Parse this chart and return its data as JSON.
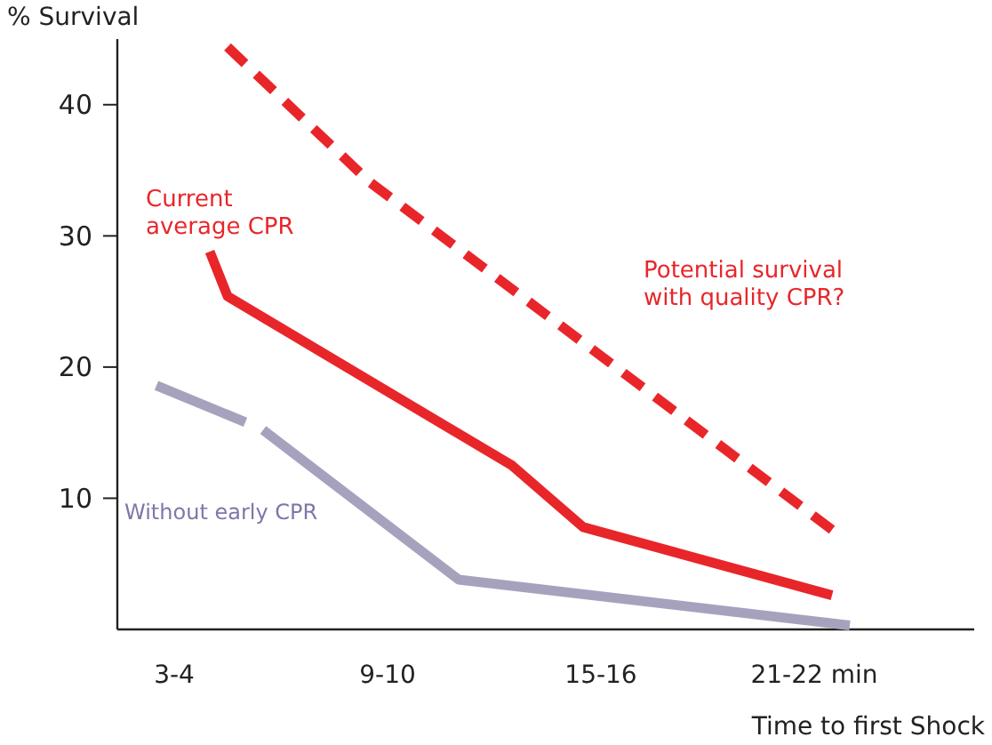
{
  "chart_data": {
    "type": "line",
    "xlabel": "Time to first Shock",
    "ylabel": "% Survival",
    "categories": [
      null,
      null,
      null,
      "3-4",
      null,
      null,
      null,
      null,
      null,
      null,
      null,
      null,
      null,
      null,
      null,
      "9-10",
      null,
      null,
      null,
      null,
      null,
      null,
      null,
      null,
      null,
      null,
      null,
      "15-16",
      null,
      null,
      null,
      null,
      null,
      null,
      null,
      null,
      null,
      null,
      null,
      "21-22 min",
      null,
      null,
      null,
      null,
      null,
      null,
      null,
      null,
      null
    ],
    "ylim": [
      0,
      45
    ],
    "yticks": [
      10,
      20,
      30,
      40
    ],
    "grid": false,
    "legend": false,
    "marker": "none",
    "series": [
      {
        "name": "Current average CPR",
        "color": "#e8262a",
        "line_style": "solid",
        "values": [
          null,
          null,
          null,
          null,
          null,
          28.8,
          25.4,
          null,
          null,
          null,
          null,
          null,
          null,
          null,
          null,
          null,
          null,
          null,
          null,
          null,
          null,
          null,
          12.5,
          null,
          null,
          null,
          7.8,
          null,
          null,
          null,
          null,
          null,
          null,
          null,
          null,
          null,
          null,
          null,
          null,
          null,
          2.6,
          null,
          null,
          null,
          null,
          null,
          null,
          null,
          null
        ]
      },
      {
        "name": "Potential survival with quality CPR?",
        "color": "#e8262a",
        "line_style": "dashed",
        "values": [
          null,
          null,
          null,
          null,
          null,
          null,
          44.4,
          null,
          null,
          null,
          null,
          null,
          null,
          null,
          34.1,
          null,
          null,
          null,
          null,
          null,
          null,
          null,
          null,
          null,
          null,
          null,
          null,
          null,
          null,
          null,
          null,
          null,
          null,
          null,
          null,
          null,
          null,
          null,
          null,
          null,
          7.6,
          null,
          null,
          null,
          null,
          null,
          null,
          null,
          null
        ]
      },
      {
        "name": "Without early CPR",
        "color": "#a6a2be",
        "line_style": "solid",
        "values": [
          null,
          null,
          null,
          null,
          null,
          null,
          null,
          null,
          15.2,
          null,
          null,
          null,
          null,
          null,
          null,
          null,
          null,
          null,
          null,
          3.8,
          null,
          null,
          null,
          null,
          null,
          null,
          null,
          null,
          null,
          null,
          null,
          null,
          null,
          null,
          null,
          null,
          null,
          null,
          null,
          null,
          null,
          0.3,
          null,
          null,
          null,
          null,
          null,
          null,
          null
        ]
      },
      {
        "color": "#a6a2be",
        "line_style": "solid",
        "values": [
          null,
          null,
          18.6,
          null,
          null,
          null,
          null,
          15.8,
          null,
          null,
          null,
          null,
          null,
          null,
          null,
          null,
          null,
          null,
          null,
          null,
          null,
          null,
          null,
          null,
          null,
          null,
          null,
          null,
          null,
          null,
          null,
          null,
          null,
          null,
          null,
          null,
          null,
          null,
          null,
          null,
          null,
          null,
          null,
          null,
          null,
          null,
          null,
          null,
          null
        ]
      }
    ]
  }
}
